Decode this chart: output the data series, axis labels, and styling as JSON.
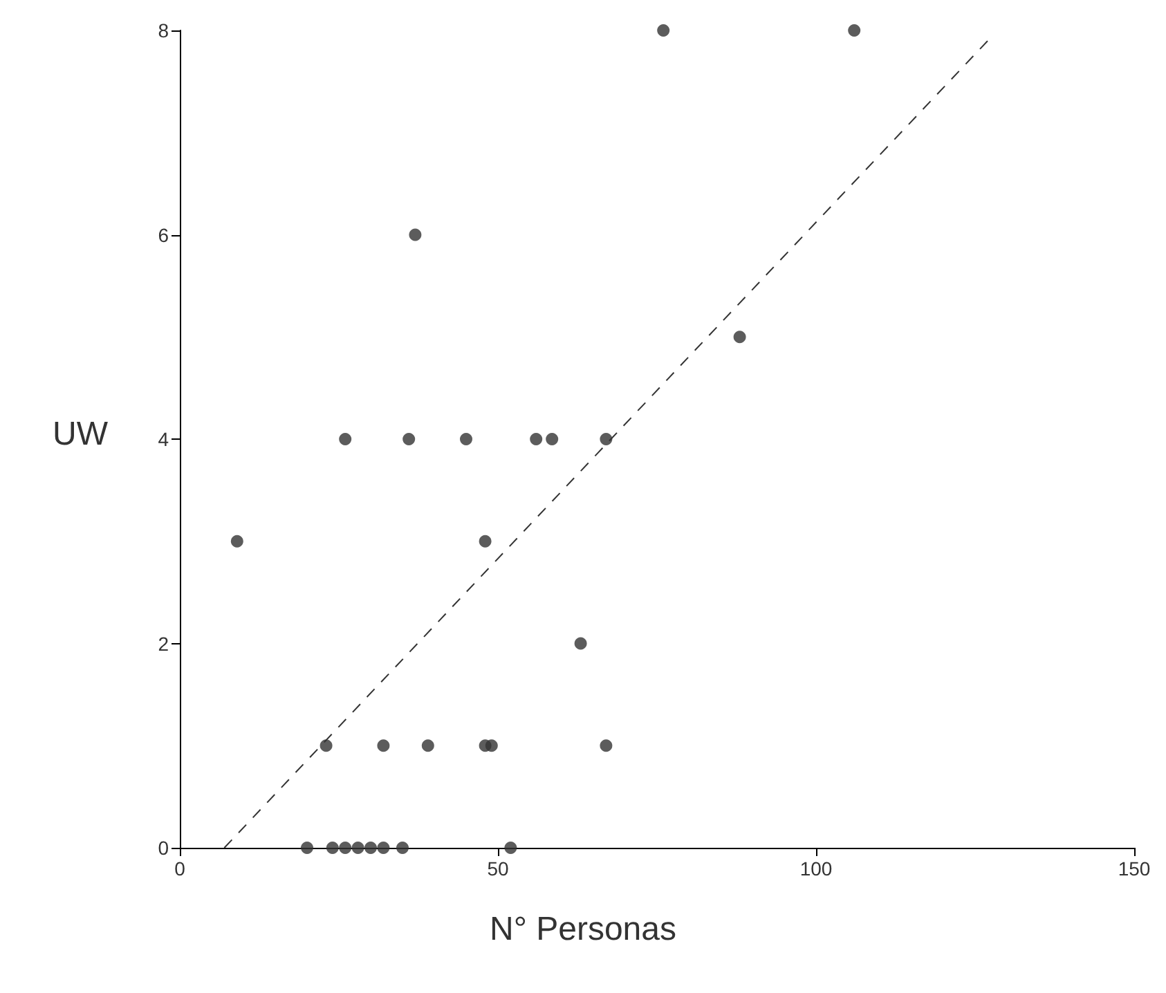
{
  "chart_data": {
    "type": "scatter",
    "xlabel": "N° Personas",
    "ylabel": "UW",
    "xlim": [
      0,
      150
    ],
    "xticks": [
      0,
      50,
      100,
      150
    ],
    "ylim": [
      0,
      8
    ],
    "yticks": [
      0,
      2,
      4,
      6,
      8
    ],
    "grid": false,
    "marker": "circle",
    "series": [
      {
        "color": "#333333",
        "x": [
          9,
          26,
          36,
          45,
          56,
          58.5,
          67,
          37,
          76,
          106,
          88,
          48,
          63,
          23,
          32,
          39,
          48,
          49,
          67,
          20,
          24,
          26,
          28,
          30,
          32,
          35,
          52
        ],
        "values": [
          3,
          4,
          4,
          4,
          4,
          4,
          4,
          6,
          8,
          8,
          5,
          3,
          2,
          1,
          1,
          1,
          1,
          1,
          1,
          0,
          0,
          0,
          0,
          0,
          0,
          0,
          0
        ]
      },
      {
        "type": "line",
        "color": "#333333",
        "line_style": "dashed",
        "marker": "none",
        "x": [
          7,
          127
        ],
        "values": [
          0,
          7.9
        ]
      }
    ]
  }
}
